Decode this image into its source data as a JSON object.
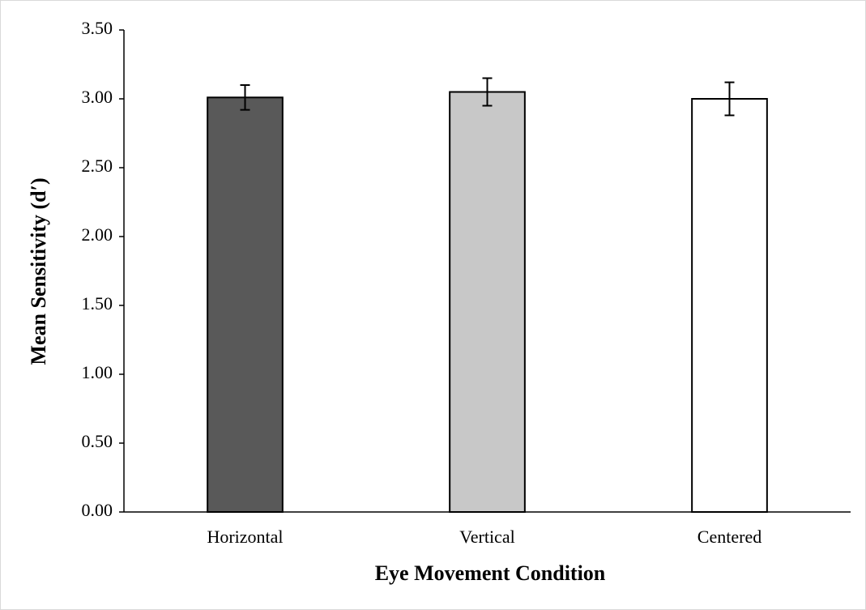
{
  "chart_data": {
    "type": "bar",
    "x_label": "Eye Movement Condition",
    "y_label": "Mean Sensitivity (d′)",
    "categories": [
      "Horizontal",
      "Vertical",
      "Centered"
    ],
    "values": [
      3.01,
      3.05,
      3.0
    ],
    "errors": [
      0.09,
      0.1,
      0.12
    ],
    "colors": [
      "#595959",
      "#c8c8c8",
      "#ffffff"
    ],
    "ylim": [
      0,
      3.5
    ],
    "yticks": [
      {
        "value": 0,
        "label": "0.00"
      },
      {
        "value": 0.5,
        "label": "0.50"
      },
      {
        "value": 1,
        "label": "1.00"
      },
      {
        "value": 1.5,
        "label": "1.50"
      },
      {
        "value": 2,
        "label": "2.00"
      },
      {
        "value": 2.5,
        "label": "2.50"
      },
      {
        "value": 3,
        "label": "3.00"
      },
      {
        "value": 3.5,
        "label": "3.50"
      }
    ],
    "grid": false
  }
}
